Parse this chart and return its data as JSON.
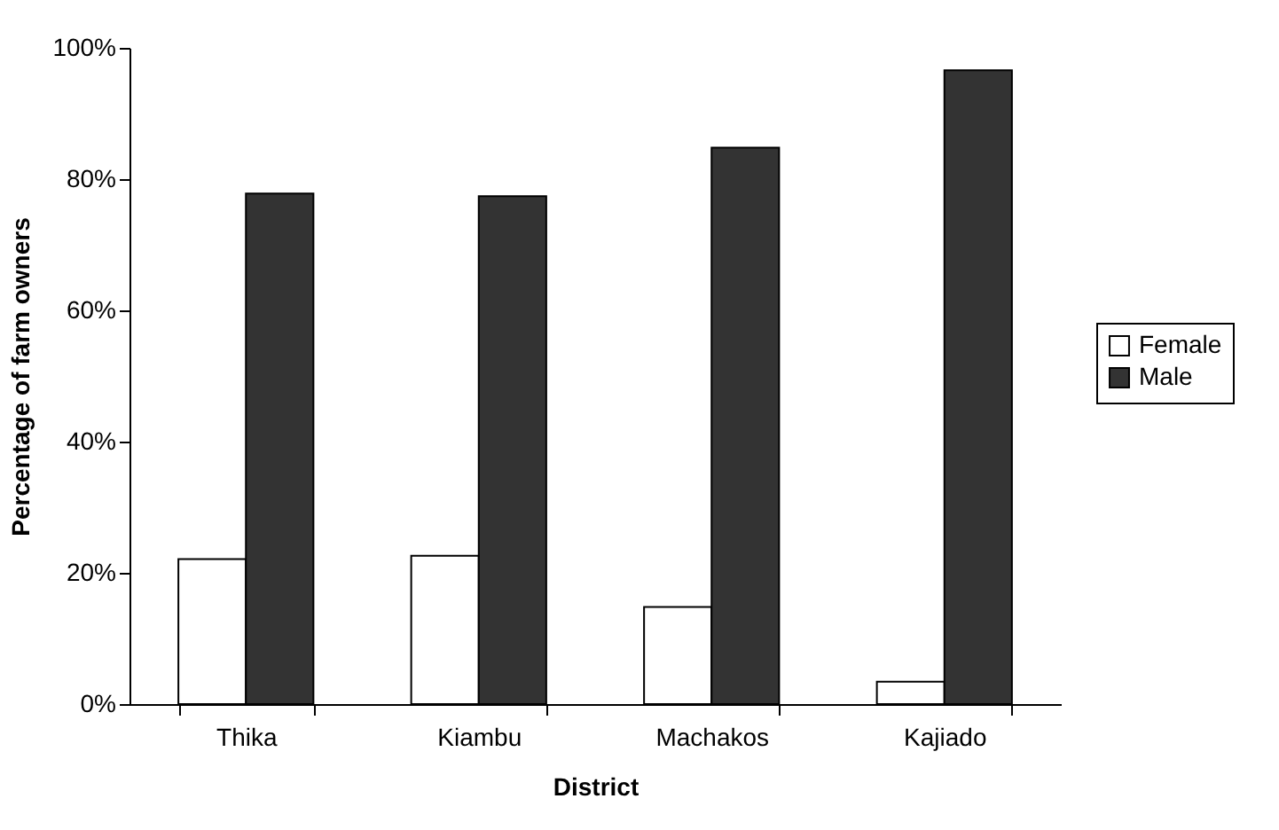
{
  "chart_data": {
    "type": "bar",
    "xlabel": "District",
    "ylabel": "Percentage of farm owners",
    "categories": [
      "Thika",
      "Kiambu",
      "Machakos",
      "Kajiado"
    ],
    "series": [
      {
        "name": "Female",
        "color": "#ffffff",
        "values": [
          22.1,
          22.6,
          14.8,
          3.4
        ]
      },
      {
        "name": "Male",
        "color": "#333333",
        "values": [
          77.8,
          77.4,
          84.8,
          96.6
        ]
      }
    ],
    "ylim": [
      0,
      100
    ],
    "yticks": [
      {
        "value": 0,
        "label": "0%"
      },
      {
        "value": 20,
        "label": "20%"
      },
      {
        "value": 40,
        "label": "40%"
      },
      {
        "value": 60,
        "label": "60%"
      },
      {
        "value": 80,
        "label": "80%"
      },
      {
        "value": 100,
        "label": "100%"
      }
    ],
    "grid": false,
    "legend": "right"
  }
}
